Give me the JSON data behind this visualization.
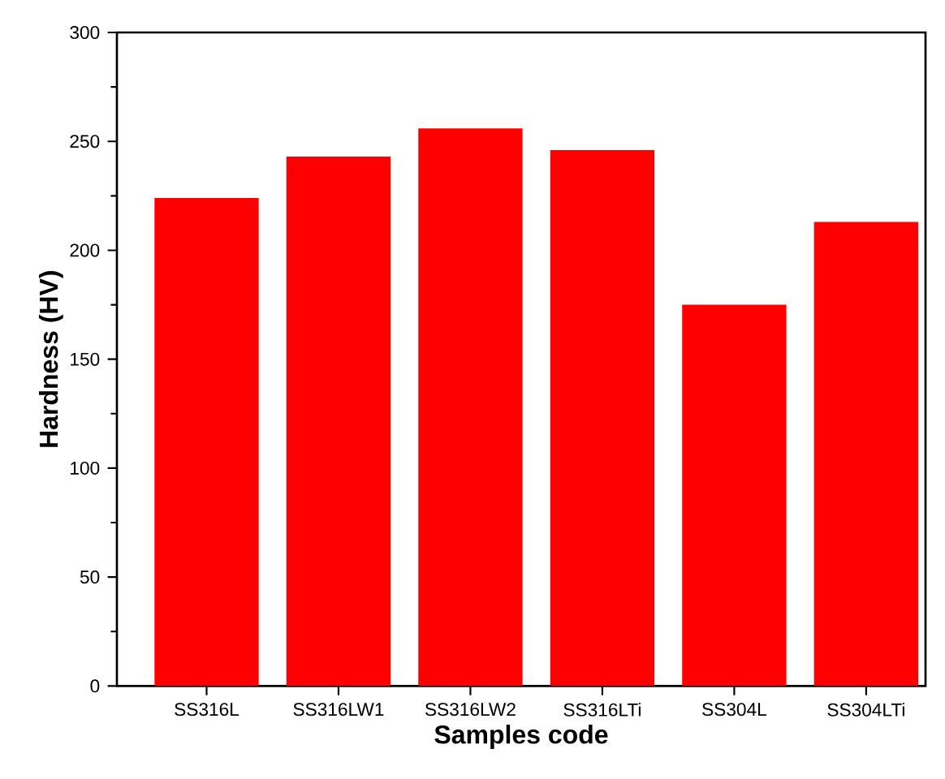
{
  "chart_data": {
    "type": "bar",
    "xlabel": "Samples code",
    "ylabel": "Hardness (HV)",
    "categories": [
      "SS316L",
      "SS316LW1",
      "SS316LW2",
      "SS316LTi",
      "SS304L",
      "SS304LTi"
    ],
    "values": [
      224,
      243,
      256,
      246,
      175,
      213
    ],
    "color": "#ff0000",
    "ylim": [
      0,
      300
    ],
    "yticks": [
      0,
      50,
      100,
      150,
      200,
      250,
      300
    ],
    "grid": false
  }
}
